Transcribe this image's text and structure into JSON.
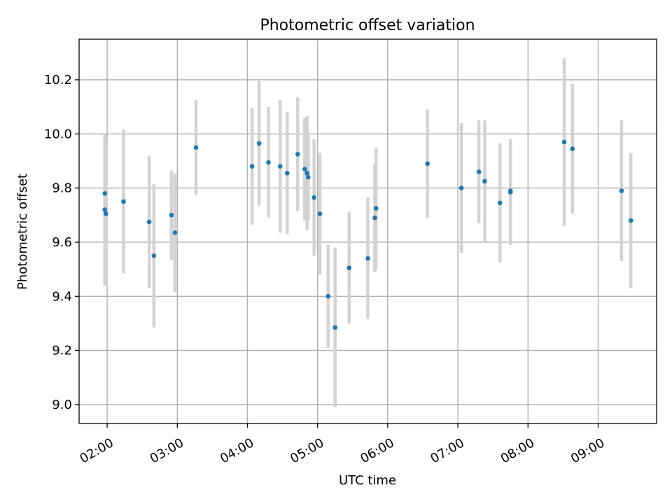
{
  "chart_data": {
    "type": "scatter",
    "title": "Photometric offset variation",
    "xlabel": "UTC time",
    "ylabel": "Photometric offset",
    "ylim": [
      8.93,
      10.35
    ],
    "xlim": [
      "01:36",
      "09:50"
    ],
    "grid": true,
    "error_bars": true,
    "x_ticks": [
      "02:00",
      "03:00",
      "04:00",
      "05:00",
      "06:00",
      "07:00",
      "08:00",
      "09:00"
    ],
    "y_ticks": [
      "9.0",
      "9.2",
      "9.4",
      "9.6",
      "9.8",
      "10.0",
      "10.2"
    ],
    "colors": {
      "points": "#1f77b4",
      "error_bars": "#d3d3d3",
      "grid": "#b0b0b0"
    },
    "series": [
      {
        "points": [
          {
            "x": "01:58",
            "y": 9.78,
            "err": 0.22
          },
          {
            "x": "01:58",
            "y": 9.72,
            "err": 0.28
          },
          {
            "x": "01:59",
            "y": 9.705,
            "err": 0.26
          },
          {
            "x": "02:14",
            "y": 9.75,
            "err": 0.265
          },
          {
            "x": "02:36",
            "y": 9.675,
            "err": 0.245
          },
          {
            "x": "02:40",
            "y": 9.55,
            "err": 0.265
          },
          {
            "x": "02:55",
            "y": 9.7,
            "err": 0.165
          },
          {
            "x": "02:58",
            "y": 9.635,
            "err": 0.22
          },
          {
            "x": "03:16",
            "y": 9.95,
            "err": 0.175
          },
          {
            "x": "04:04",
            "y": 9.88,
            "err": 0.215
          },
          {
            "x": "04:10",
            "y": 9.965,
            "err": 0.23
          },
          {
            "x": "04:18",
            "y": 9.895,
            "err": 0.205
          },
          {
            "x": "04:28",
            "y": 9.88,
            "err": 0.245
          },
          {
            "x": "04:34",
            "y": 9.855,
            "err": 0.225
          },
          {
            "x": "04:43",
            "y": 9.925,
            "err": 0.21
          },
          {
            "x": "04:49",
            "y": 9.87,
            "err": 0.19
          },
          {
            "x": "04:51",
            "y": 9.855,
            "err": 0.21
          },
          {
            "x": "04:52",
            "y": 9.84,
            "err": 0.16
          },
          {
            "x": "04:57",
            "y": 9.765,
            "err": 0.215
          },
          {
            "x": "05:02",
            "y": 9.705,
            "err": 0.225
          },
          {
            "x": "05:09",
            "y": 9.4,
            "err": 0.19
          },
          {
            "x": "05:15",
            "y": 9.285,
            "err": 0.295
          },
          {
            "x": "05:27",
            "y": 9.505,
            "err": 0.205
          },
          {
            "x": "05:43",
            "y": 9.54,
            "err": 0.225
          },
          {
            "x": "05:49",
            "y": 9.69,
            "err": 0.2
          },
          {
            "x": "05:50",
            "y": 9.725,
            "err": 0.225
          },
          {
            "x": "06:34",
            "y": 9.89,
            "err": 0.2
          },
          {
            "x": "07:03",
            "y": 9.8,
            "err": 0.24
          },
          {
            "x": "07:18",
            "y": 9.86,
            "err": 0.19
          },
          {
            "x": "07:23",
            "y": 9.825,
            "err": 0.225
          },
          {
            "x": "07:36",
            "y": 9.745,
            "err": 0.22
          },
          {
            "x": "07:45",
            "y": 9.785,
            "err": 0.195
          },
          {
            "x": "07:45",
            "y": 9.79,
            "err": 0.19
          },
          {
            "x": "08:31",
            "y": 9.97,
            "err": 0.31
          },
          {
            "x": "08:38",
            "y": 9.945,
            "err": 0.24
          },
          {
            "x": "09:20",
            "y": 9.79,
            "err": 0.26
          },
          {
            "x": "09:28",
            "y": 9.68,
            "err": 0.25
          }
        ]
      }
    ]
  }
}
